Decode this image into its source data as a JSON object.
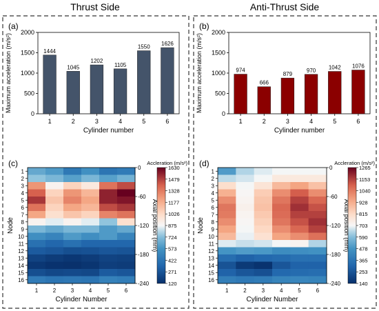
{
  "headers": {
    "left": "Thrust Side",
    "right": "Anti-Thrust Side"
  },
  "colors": {
    "thrust_bar": "#44546a",
    "anti_bar": "#8b0000",
    "frame": "#333333"
  },
  "chart_data": [
    {
      "panel": "(a)",
      "type": "bar",
      "categories": [
        "1",
        "2",
        "3",
        "4",
        "5",
        "6"
      ],
      "values": [
        1444,
        1045,
        1202,
        1105,
        1550,
        1626
      ],
      "data_labels": [
        "1444",
        "1045",
        "1202",
        "1105",
        "1550",
        "1626"
      ],
      "xlabel": "Cylinder number",
      "ylabel": "Maximum acceleration (m/s²)",
      "ylim": [
        0,
        2000
      ],
      "yticks": [
        "0",
        "500",
        "1000",
        "1500",
        "2000"
      ],
      "color": "#44546a"
    },
    {
      "panel": "(b)",
      "type": "bar",
      "categories": [
        "1",
        "2",
        "3",
        "4",
        "5",
        "6"
      ],
      "values": [
        974,
        666,
        879,
        970,
        1042,
        1076
      ],
      "data_labels": [
        "974",
        "666",
        "879",
        "970",
        "1042",
        "1076"
      ],
      "xlabel": "Cylinder number",
      "ylabel": "Maximum acceleration (m/s²)",
      "ylim": [
        0,
        2000
      ],
      "yticks": [
        "0",
        "500",
        "1000",
        "1500",
        "2000"
      ],
      "color": "#8b0000"
    },
    {
      "panel": "(c)",
      "type": "heatmap",
      "x": [
        "1",
        "2",
        "3",
        "4",
        "5",
        "6"
      ],
      "y": [
        "1",
        "2",
        "3",
        "4",
        "5",
        "6",
        "7",
        "8",
        "9",
        "10",
        "11",
        "12",
        "13",
        "14",
        "15",
        "16"
      ],
      "xlabel": "Cylinder Number",
      "ylabel": "Node",
      "y2label": "Axial position (mm)",
      "y2ticks": [
        "0",
        "-60",
        "-120",
        "-180",
        "-240"
      ],
      "colorbar_title": "Accleration (m/s²)",
      "colorbar_ticks": [
        "1630",
        "1479",
        "1328",
        "1177",
        "1026",
        "875",
        "724",
        "573",
        "422",
        "271",
        "120"
      ],
      "vmin": 120,
      "vmax": 1630,
      "values": [
        [
          650,
          600,
          440,
          560,
          420,
          450
        ],
        [
          750,
          700,
          620,
          700,
          620,
          680
        ],
        [
          1250,
          900,
          1050,
          950,
          1350,
          1450
        ],
        [
          1400,
          1050,
          1250,
          1150,
          1550,
          1630
        ],
        [
          1500,
          1100,
          1300,
          1200,
          1550,
          1580
        ],
        [
          1350,
          1050,
          1200,
          1150,
          1450,
          1500
        ],
        [
          1200,
          1000,
          1100,
          1050,
          1300,
          1350
        ],
        [
          900,
          850,
          900,
          850,
          750,
          1000
        ],
        [
          700,
          650,
          700,
          700,
          600,
          650
        ],
        [
          550,
          500,
          600,
          550,
          600,
          500
        ],
        [
          400,
          350,
          400,
          350,
          350,
          350
        ],
        [
          300,
          280,
          250,
          260,
          280,
          270
        ],
        [
          200,
          170,
          150,
          170,
          200,
          190
        ],
        [
          150,
          130,
          125,
          140,
          180,
          170
        ],
        [
          250,
          220,
          230,
          220,
          300,
          280
        ],
        [
          450,
          420,
          430,
          420,
          480,
          460
        ]
      ]
    },
    {
      "panel": "(d)",
      "type": "heatmap",
      "x": [
        "1",
        "2",
        "3",
        "4",
        "5",
        "6"
      ],
      "y": [
        "1",
        "2",
        "3",
        "4",
        "5",
        "6",
        "7",
        "8",
        "9",
        "10",
        "11",
        "12",
        "13",
        "14",
        "15",
        "16"
      ],
      "xlabel": "Cylinder Number",
      "ylabel": "Node",
      "y2label": "Axial position (mm)",
      "y2ticks": [
        "0",
        "-60",
        "-120",
        "-180",
        "-240"
      ],
      "colorbar_title": "Accleration (m/s²)",
      "colorbar_ticks": [
        "1265",
        "1153",
        "1040",
        "928",
        "815",
        "703",
        "590",
        "478",
        "365",
        "253",
        "140"
      ],
      "vmin": 140,
      "vmax": 1265,
      "values": [
        [
          500,
          640,
          680,
          700,
          700,
          700
        ],
        [
          650,
          670,
          700,
          760,
          760,
          760
        ],
        [
          800,
          700,
          780,
          900,
          950,
          880
        ],
        [
          920,
          710,
          850,
          1000,
          1100,
          1000
        ],
        [
          1000,
          720,
          870,
          1050,
          1150,
          1080
        ],
        [
          1050,
          730,
          880,
          1080,
          1180,
          1120
        ],
        [
          1040,
          720,
          860,
          1070,
          1150,
          1150
        ],
        [
          1000,
          710,
          840,
          1050,
          1120,
          1180
        ],
        [
          950,
          700,
          820,
          1000,
          1080,
          1150
        ],
        [
          900,
          690,
          790,
          950,
          1000,
          1060
        ],
        [
          680,
          660,
          670,
          700,
          720,
          640
        ],
        [
          480,
          500,
          490,
          450,
          460,
          470
        ],
        [
          340,
          300,
          320,
          330,
          350,
          350
        ],
        [
          250,
          170,
          150,
          260,
          300,
          300
        ],
        [
          300,
          260,
          240,
          320,
          330,
          340
        ],
        [
          400,
          380,
          390,
          420,
          430,
          420
        ]
      ]
    }
  ]
}
